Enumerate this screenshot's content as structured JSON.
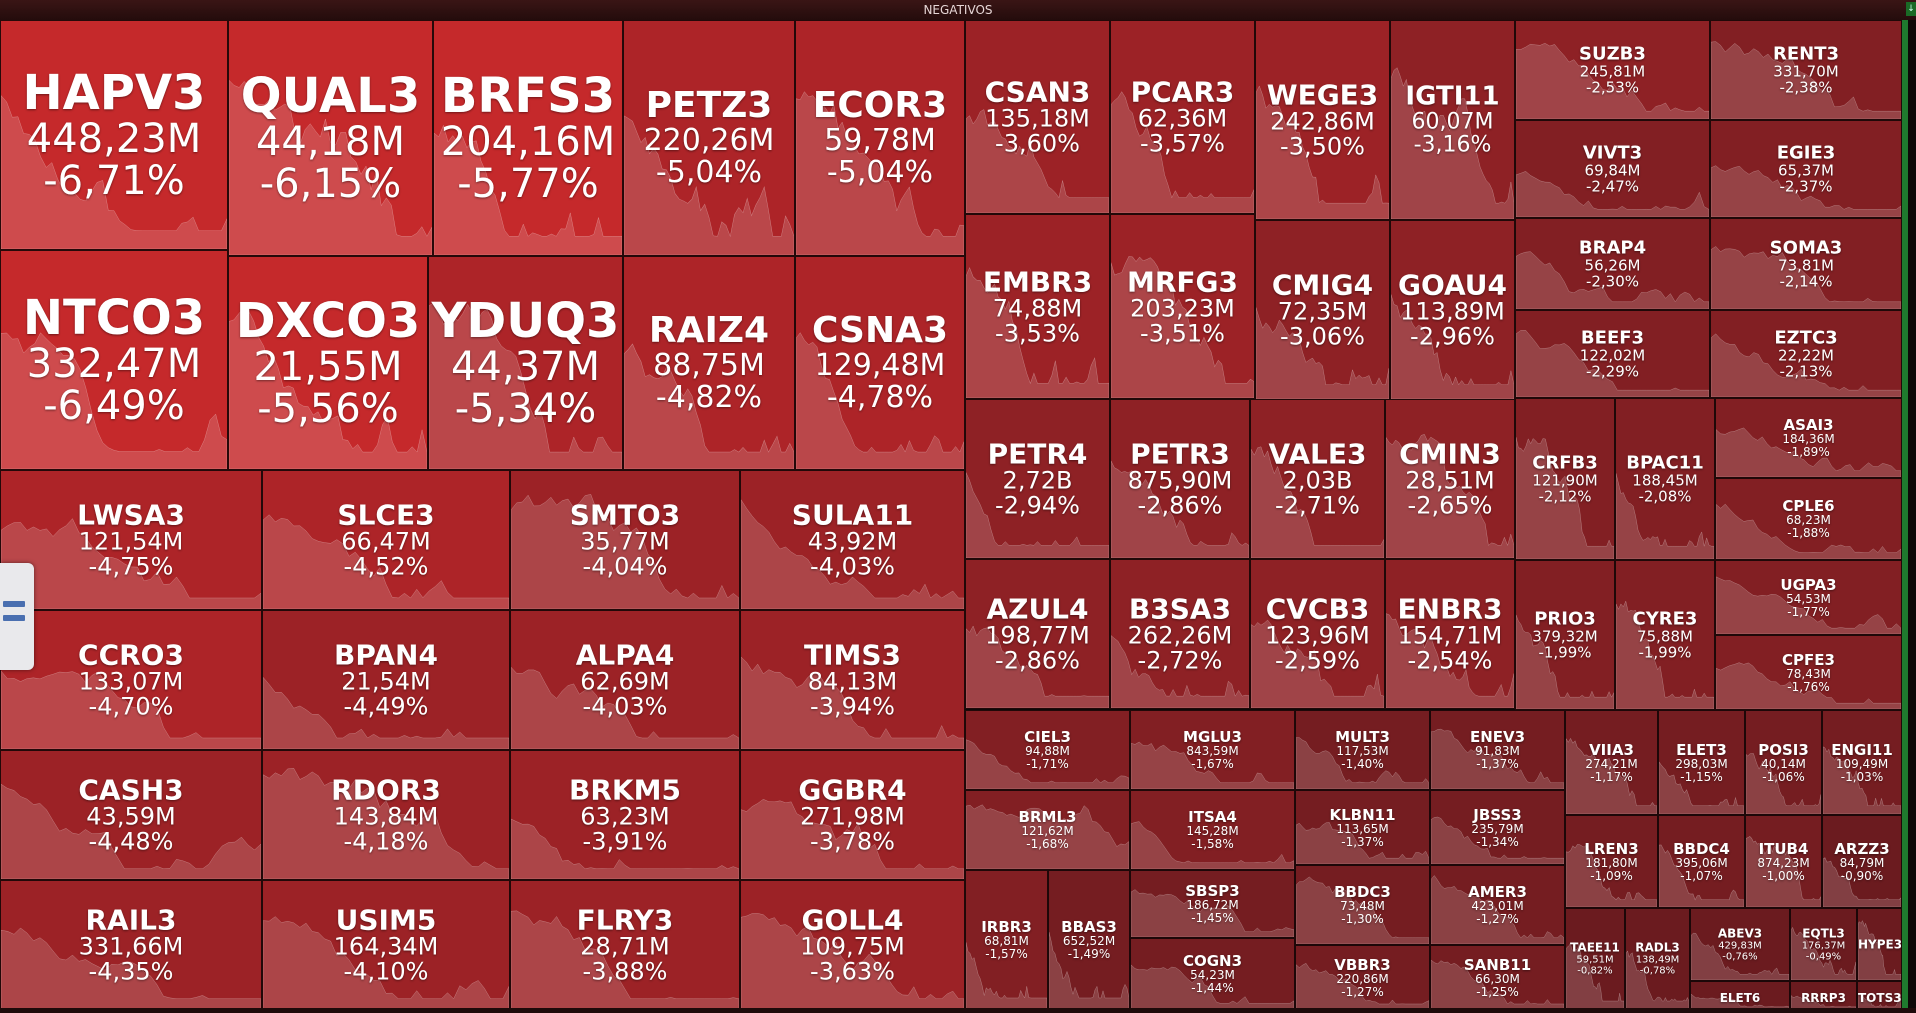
{
  "window": {
    "title": "NEGATIVOS"
  },
  "colors": {
    "deep": "#c22a2c",
    "mid": "#9e2024",
    "low": "#7a1f22",
    "pale": "#6a1c20"
  },
  "tiles": [
    {
      "ticker": "HAPV3",
      "volume": "448,23M",
      "change": "-6,71%"
    },
    {
      "ticker": "QUAL3",
      "volume": "44,18M",
      "change": "-6,15%"
    },
    {
      "ticker": "BRFS3",
      "volume": "204,16M",
      "change": "-5,77%"
    },
    {
      "ticker": "PETZ3",
      "volume": "220,26M",
      "change": "-5,04%"
    },
    {
      "ticker": "ECOR3",
      "volume": "59,78M",
      "change": "-5,04%"
    },
    {
      "ticker": "NTCO3",
      "volume": "332,47M",
      "change": "-6,49%"
    },
    {
      "ticker": "DXCO3",
      "volume": "21,55M",
      "change": "-5,56%"
    },
    {
      "ticker": "YDUQ3",
      "volume": "44,37M",
      "change": "-5,34%"
    },
    {
      "ticker": "RAIZ4",
      "volume": "88,75M",
      "change": "-4,82%"
    },
    {
      "ticker": "CSNA3",
      "volume": "129,48M",
      "change": "-4,78%"
    },
    {
      "ticker": "LWSA3",
      "volume": "121,54M",
      "change": "-4,75%"
    },
    {
      "ticker": "SLCE3",
      "volume": "66,47M",
      "change": "-4,52%"
    },
    {
      "ticker": "SMTO3",
      "volume": "35,77M",
      "change": "-4,04%"
    },
    {
      "ticker": "SULA11",
      "volume": "43,92M",
      "change": "-4,03%"
    },
    {
      "ticker": "CCRO3",
      "volume": "133,07M",
      "change": "-4,70%"
    },
    {
      "ticker": "BPAN4",
      "volume": "21,54M",
      "change": "-4,49%"
    },
    {
      "ticker": "ALPA4",
      "volume": "62,69M",
      "change": "-4,03%"
    },
    {
      "ticker": "TIMS3",
      "volume": "84,13M",
      "change": "-3,94%"
    },
    {
      "ticker": "CASH3",
      "volume": "43,59M",
      "change": "-4,48%"
    },
    {
      "ticker": "RDOR3",
      "volume": "143,84M",
      "change": "-4,18%"
    },
    {
      "ticker": "BRKM5",
      "volume": "63,23M",
      "change": "-3,91%"
    },
    {
      "ticker": "GGBR4",
      "volume": "271,98M",
      "change": "-3,78%"
    },
    {
      "ticker": "RAIL3",
      "volume": "331,66M",
      "change": "-4,35%"
    },
    {
      "ticker": "USIM5",
      "volume": "164,34M",
      "change": "-4,10%"
    },
    {
      "ticker": "FLRY3",
      "volume": "28,71M",
      "change": "-3,88%"
    },
    {
      "ticker": "GOLL4",
      "volume": "109,75M",
      "change": "-3,63%"
    },
    {
      "ticker": "CSAN3",
      "volume": "135,18M",
      "change": "-3,60%"
    },
    {
      "ticker": "PCAR3",
      "volume": "62,36M",
      "change": "-3,57%"
    },
    {
      "ticker": "WEGE3",
      "volume": "242,86M",
      "change": "-3,50%"
    },
    {
      "ticker": "IGTI11",
      "volume": "60,07M",
      "change": "-3,16%"
    },
    {
      "ticker": "EMBR3",
      "volume": "74,88M",
      "change": "-3,53%"
    },
    {
      "ticker": "MRFG3",
      "volume": "203,23M",
      "change": "-3,51%"
    },
    {
      "ticker": "CMIG4",
      "volume": "72,35M",
      "change": "-3,06%"
    },
    {
      "ticker": "GOAU4",
      "volume": "113,89M",
      "change": "-2,96%"
    },
    {
      "ticker": "PETR4",
      "volume": "2,72B",
      "change": "-2,94%"
    },
    {
      "ticker": "PETR3",
      "volume": "875,90M",
      "change": "-2,86%"
    },
    {
      "ticker": "VALE3",
      "volume": "2,03B",
      "change": "-2,71%"
    },
    {
      "ticker": "CMIN3",
      "volume": "28,51M",
      "change": "-2,65%"
    },
    {
      "ticker": "AZUL4",
      "volume": "198,77M",
      "change": "-2,86%"
    },
    {
      "ticker": "B3SA3",
      "volume": "262,26M",
      "change": "-2,72%"
    },
    {
      "ticker": "CVCB3",
      "volume": "123,96M",
      "change": "-2,59%"
    },
    {
      "ticker": "ENBR3",
      "volume": "154,71M",
      "change": "-2,54%"
    },
    {
      "ticker": "SUZB3",
      "volume": "245,81M",
      "change": "-2,53%"
    },
    {
      "ticker": "RENT3",
      "volume": "331,70M",
      "change": "-2,38%"
    },
    {
      "ticker": "VIVT3",
      "volume": "69,84M",
      "change": "-2,47%"
    },
    {
      "ticker": "EGIE3",
      "volume": "65,37M",
      "change": "-2,37%"
    },
    {
      "ticker": "BRAP4",
      "volume": "56,26M",
      "change": "-2,30%"
    },
    {
      "ticker": "SOMA3",
      "volume": "73,81M",
      "change": "-2,14%"
    },
    {
      "ticker": "BEEF3",
      "volume": "122,02M",
      "change": "-2,29%"
    },
    {
      "ticker": "EZTC3",
      "volume": "22,22M",
      "change": "-2,13%"
    },
    {
      "ticker": "CRFB3",
      "volume": "121,90M",
      "change": "-2,12%"
    },
    {
      "ticker": "BPAC11",
      "volume": "188,45M",
      "change": "-2,08%"
    },
    {
      "ticker": "ASAI3",
      "volume": "184,36M",
      "change": "-1,89%"
    },
    {
      "ticker": "CPLE6",
      "volume": "68,23M",
      "change": "-1,88%"
    },
    {
      "ticker": "PRIO3",
      "volume": "379,32M",
      "change": "-1,99%"
    },
    {
      "ticker": "CYRE3",
      "volume": "75,88M",
      "change": "-1,99%"
    },
    {
      "ticker": "UGPA3",
      "volume": "54,53M",
      "change": "-1,77%"
    },
    {
      "ticker": "CPFE3",
      "volume": "78,43M",
      "change": "-1,76%"
    },
    {
      "ticker": "CIEL3",
      "volume": "94,88M",
      "change": "-1,71%"
    },
    {
      "ticker": "MGLU3",
      "volume": "843,59M",
      "change": "-1,67%"
    },
    {
      "ticker": "MULT3",
      "volume": "117,53M",
      "change": "-1,40%"
    },
    {
      "ticker": "ENEV3",
      "volume": "91,83M",
      "change": "-1,37%"
    },
    {
      "ticker": "BRML3",
      "volume": "121,62M",
      "change": "-1,68%"
    },
    {
      "ticker": "ITSA4",
      "volume": "145,28M",
      "change": "-1,58%"
    },
    {
      "ticker": "KLBN11",
      "volume": "113,65M",
      "change": "-1,37%"
    },
    {
      "ticker": "JBSS3",
      "volume": "235,79M",
      "change": "-1,34%"
    },
    {
      "ticker": "SBSP3",
      "volume": "186,72M",
      "change": "-1,45%"
    },
    {
      "ticker": "BBDC3",
      "volume": "73,48M",
      "change": "-1,30%"
    },
    {
      "ticker": "AMER3",
      "volume": "423,01M",
      "change": "-1,27%"
    },
    {
      "ticker": "IRBR3",
      "volume": "68,81M",
      "change": "-1,57%"
    },
    {
      "ticker": "BBAS3",
      "volume": "652,52M",
      "change": "-1,49%"
    },
    {
      "ticker": "COGN3",
      "volume": "54,23M",
      "change": "-1,44%"
    },
    {
      "ticker": "VBBR3",
      "volume": "220,86M",
      "change": "-1,27%"
    },
    {
      "ticker": "SANB11",
      "volume": "66,30M",
      "change": "-1,25%"
    },
    {
      "ticker": "VIIA3",
      "volume": "274,21M",
      "change": "-1,17%"
    },
    {
      "ticker": "ELET3",
      "volume": "298,03M",
      "change": "-1,15%"
    },
    {
      "ticker": "POSI3",
      "volume": "40,14M",
      "change": "-1,06%"
    },
    {
      "ticker": "ENGI11",
      "volume": "109,49M",
      "change": "-1,03%"
    },
    {
      "ticker": "LREN3",
      "volume": "181,80M",
      "change": "-1,09%"
    },
    {
      "ticker": "BBDC4",
      "volume": "395,06M",
      "change": "-1,07%"
    },
    {
      "ticker": "ITUB4",
      "volume": "874,23M",
      "change": "-1,00%"
    },
    {
      "ticker": "ARZZ3",
      "volume": "84,79M",
      "change": "-0,90%"
    },
    {
      "ticker": "TAEE11",
      "volume": "59,51M",
      "change": "-0,82%"
    },
    {
      "ticker": "RADL3",
      "volume": "138,49M",
      "change": "-0,78%"
    },
    {
      "ticker": "ABEV3",
      "volume": "429,83M",
      "change": "-0,76%"
    },
    {
      "ticker": "EQTL3",
      "volume": "176,37M",
      "change": "-0,49%"
    },
    {
      "ticker": "HYPE3",
      "volume": "",
      "change": ""
    },
    {
      "ticker": "ELET6",
      "volume": "",
      "change": ""
    },
    {
      "ticker": "RRRP3",
      "volume": "",
      "change": ""
    },
    {
      "ticker": "TOTS3",
      "volume": "",
      "change": ""
    }
  ]
}
